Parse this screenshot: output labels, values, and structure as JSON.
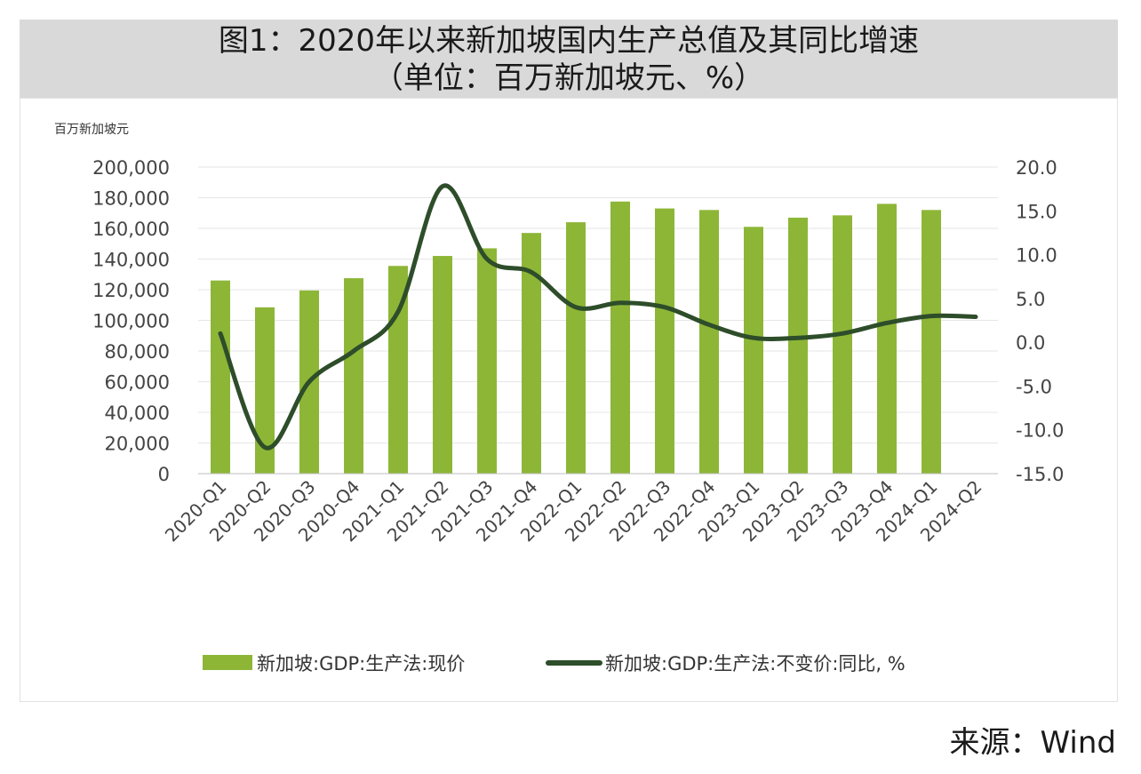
{
  "header": {
    "title_line1": "图1：2020年以来新加坡国内生产总值及其同比增速",
    "title_line2": "（单位：百万新加坡元、%）"
  },
  "source": "来源：Wind",
  "chart_data": {
    "type": "bar+line",
    "categories": [
      "2020-Q1",
      "2020-Q2",
      "2020-Q3",
      "2020-Q4",
      "2021-Q1",
      "2021-Q2",
      "2021-Q3",
      "2021-Q4",
      "2022-Q1",
      "2022-Q2",
      "2022-Q3",
      "2022-Q4",
      "2023-Q1",
      "2023-Q2",
      "2023-Q3",
      "2023-Q4",
      "2024-Q1",
      "2024-Q2"
    ],
    "y_left_label": "百万新加坡元",
    "y_left_range": [
      0,
      200000
    ],
    "y_left_ticks": [
      "0",
      "20,000",
      "40,000",
      "60,000",
      "80,000",
      "100,000",
      "120,000",
      "140,000",
      "160,000",
      "180,000",
      "200,000"
    ],
    "y_right_range": [
      -15,
      20
    ],
    "y_right_ticks": [
      "-15.0",
      "-10.0",
      "-5.0",
      "0.0",
      "5.0",
      "10.0",
      "15.0",
      "20.0"
    ],
    "gridlines": true,
    "legend_position": "bottom",
    "series": [
      {
        "name": "新加坡:GDP:生产法:现价",
        "type": "bar",
        "axis": "left",
        "color": "#8db637",
        "values": [
          126000,
          108500,
          119500,
          127500,
          135500,
          142000,
          147000,
          157000,
          164000,
          177500,
          173000,
          172000,
          161000,
          167000,
          168500,
          176000,
          172000,
          null
        ]
      },
      {
        "name": "新加坡:GDP:生产法:不变价:同比, %",
        "type": "line",
        "axis": "right",
        "color": "#2e4d2a",
        "values": [
          1.0,
          -12.0,
          -4.5,
          -1.0,
          3.5,
          17.8,
          9.5,
          8.0,
          4.0,
          4.5,
          4.0,
          2.0,
          0.5,
          0.5,
          1.0,
          2.2,
          3.0,
          2.9
        ]
      }
    ]
  }
}
